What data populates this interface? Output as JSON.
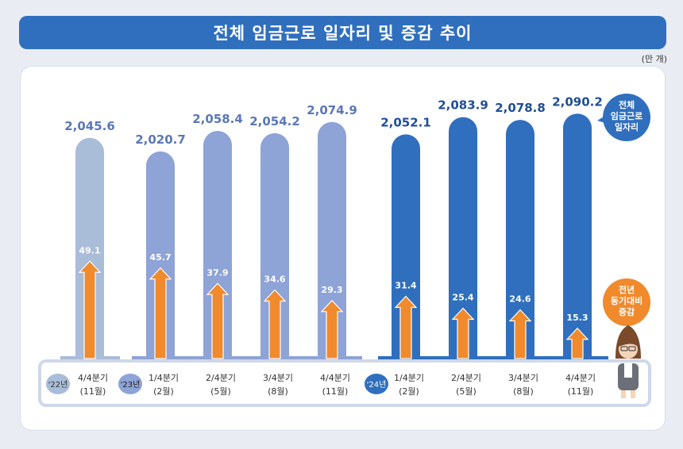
{
  "header": {
    "title": "전체 임금근로 일자리 및 증감 추이",
    "unit": "(만 개)"
  },
  "legend": {
    "total_label": [
      "전체",
      "임금근로",
      "일자리"
    ],
    "change_label": [
      "전년",
      "동기대비",
      "증감"
    ]
  },
  "colors": {
    "title_bg": "#2f6fbe",
    "bar_2022": "#a9bcd8",
    "bar_2023": "#8ea3d6",
    "bar_2024": "#2f6fbe",
    "arrow": "#f08a2c",
    "label_2024": "#1f4e96",
    "label_2023": "#5a78b8"
  },
  "chart_data": {
    "type": "bar",
    "title": "전체 임금근로 일자리 및 증감 추이",
    "unit": "(만 개)",
    "years": [
      {
        "label": "'22년",
        "index_range": [
          0,
          0
        ]
      },
      {
        "label": "'23년",
        "index_range": [
          1,
          4
        ]
      },
      {
        "label": "'24년",
        "index_range": [
          5,
          8
        ]
      }
    ],
    "categories": [
      [
        "4/4분기",
        "(11월)"
      ],
      [
        "1/4분기",
        "(2월)"
      ],
      [
        "2/4분기",
        "(5월)"
      ],
      [
        "3/4분기",
        "(8월)"
      ],
      [
        "4/4분기",
        "(11월)"
      ],
      [
        "1/4분기",
        "(2월)"
      ],
      [
        "2/4분기",
        "(5월)"
      ],
      [
        "3/4분기",
        "(8월)"
      ],
      [
        "4/4분기",
        "(11월)"
      ]
    ],
    "series": [
      {
        "name": "전체 임금근로 일자리",
        "values": [
          2045.6,
          2020.7,
          2058.4,
          2054.2,
          2074.9,
          2052.1,
          2083.9,
          2078.8,
          2090.2
        ],
        "labels": [
          "2,045.6",
          "2,020.7",
          "2,058.4",
          "2,054.2",
          "2,074.9",
          "2,052.1",
          "2,083.9",
          "2,078.8",
          "2,090.2"
        ]
      },
      {
        "name": "전년 동기대비 증감",
        "values": [
          49.1,
          45.7,
          37.9,
          34.6,
          29.3,
          31.4,
          25.4,
          24.6,
          15.3
        ],
        "labels": [
          "49.1",
          "45.7",
          "37.9",
          "34.6",
          "29.3",
          "31.4",
          "25.4",
          "24.6",
          "15.3"
        ]
      }
    ]
  }
}
